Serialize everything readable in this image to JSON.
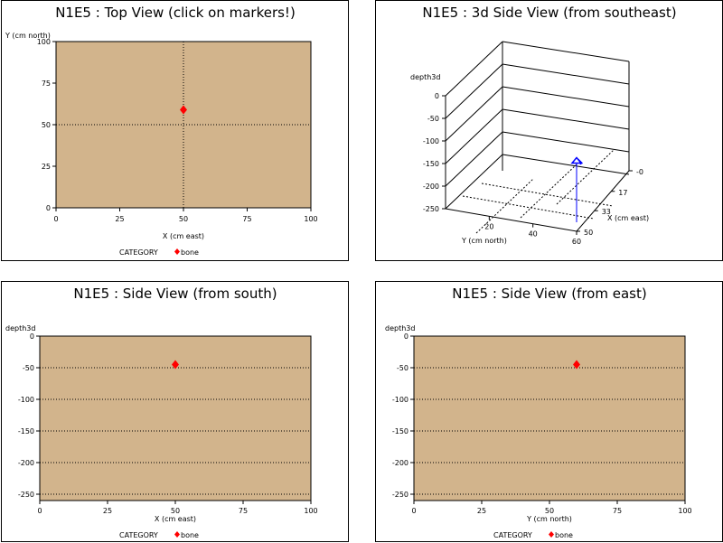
{
  "chart_data": [
    {
      "type": "scatter",
      "title": "N1E5 : Top View (click on markers!)",
      "xlabel": "X (cm east)",
      "ylabel": "Y (cm north)",
      "xlim": [
        0,
        100
      ],
      "ylim": [
        0,
        100
      ],
      "xticks": [
        "0",
        "25",
        "50",
        "75",
        "100"
      ],
      "yticks": [
        "0",
        "25",
        "50",
        "75",
        "100"
      ],
      "ref_x": 50,
      "ref_y": 50,
      "legend_label": "CATEGORY",
      "series": [
        {
          "name": "bone",
          "points": [
            {
              "x": 50,
              "y": 59
            }
          ]
        }
      ],
      "marker_color": "#ff0000",
      "plot_background": "#d2b48c"
    },
    {
      "type": "scatter",
      "title": "N1E5 : 3d Side View (from southeast)",
      "zlabel": "depth3d",
      "ylabel": "Y (cm north)",
      "xlabel": "X (cm east)",
      "zticks": [
        "0",
        "-50",
        "-100",
        "-150",
        "-200",
        "-250"
      ],
      "yticks": [
        "20",
        "40",
        "60"
      ],
      "xticks": [
        "-0",
        "17",
        "33",
        "50"
      ],
      "zlim": [
        -250,
        0
      ],
      "ylim": [
        0,
        60
      ],
      "xlim": [
        0,
        50
      ],
      "points": [
        {
          "x": 50,
          "y": 60,
          "z": -95
        }
      ],
      "marker_color": "#0000ff"
    },
    {
      "type": "scatter",
      "title": "N1E5 : Side View (from south)",
      "xlabel": "X (cm east)",
      "ylabel": "depth3d",
      "xlim": [
        0,
        100
      ],
      "ylim": [
        -260,
        0
      ],
      "xticks": [
        "0",
        "25",
        "50",
        "75",
        "100"
      ],
      "yticks": [
        "0",
        "-50",
        "-100",
        "-150",
        "-200",
        "-250"
      ],
      "yvals": [
        0,
        -50,
        -100,
        -150,
        -200,
        -250
      ],
      "legend_label": "CATEGORY",
      "series": [
        {
          "name": "bone",
          "points": [
            {
              "x": 50,
              "y": -45
            }
          ]
        }
      ],
      "marker_color": "#ff0000",
      "plot_background": "#d2b48c"
    },
    {
      "type": "scatter",
      "title": "N1E5 : Side View (from east)",
      "xlabel": "Y (cm north)",
      "ylabel": "depth3d",
      "xlim": [
        0,
        100
      ],
      "ylim": [
        -260,
        0
      ],
      "xticks": [
        "0",
        "25",
        "50",
        "75",
        "100"
      ],
      "yticks": [
        "0",
        "-50",
        "-100",
        "-150",
        "-200",
        "-250"
      ],
      "yvals": [
        0,
        -50,
        -100,
        -150,
        -200,
        -250
      ],
      "legend_label": "CATEGORY",
      "series": [
        {
          "name": "bone",
          "points": [
            {
              "x": 60,
              "y": -45
            }
          ]
        }
      ],
      "marker_color": "#ff0000",
      "plot_background": "#d2b48c"
    }
  ]
}
